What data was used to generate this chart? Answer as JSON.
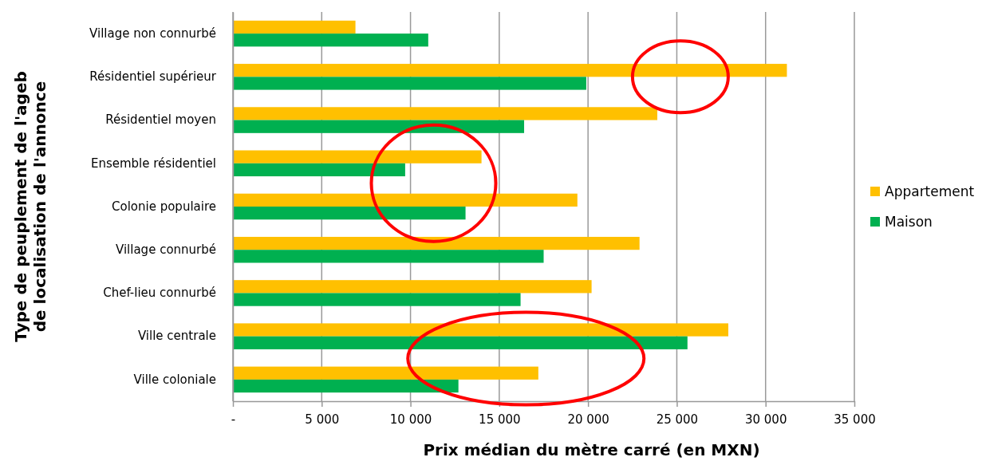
{
  "chart_data": {
    "type": "bar",
    "orientation": "horizontal",
    "xlabel": "Prix médian du mètre carré (en MXN)",
    "ylabel": "Type de peuplement de l'ageb de localisation de l'annonce",
    "categories": [
      "Village non connurbé",
      "Résidentiel supérieur",
      "Résidentiel moyen",
      "Ensemble résidentiel",
      "Colonie populaire",
      "Village connurbé",
      "Chef-lieu connurbé",
      "Ville centrale",
      "Ville coloniale"
    ],
    "series": [
      {
        "name": "Appartement",
        "color": "#ffc000",
        "values": [
          6900,
          31200,
          23900,
          14000,
          19400,
          22900,
          20200,
          27900,
          17200
        ]
      },
      {
        "name": "Maison",
        "color": "#00b050",
        "values": [
          11000,
          19900,
          16400,
          9700,
          13100,
          17500,
          16200,
          25600,
          12700
        ]
      }
    ],
    "xlim": [
      0,
      35000
    ],
    "xticks": [
      {
        "value": 0,
        "label": "-"
      },
      {
        "value": 5000,
        "label": "5 000"
      },
      {
        "value": 10000,
        "label": "10 000"
      },
      {
        "value": 15000,
        "label": "15 000"
      },
      {
        "value": 20000,
        "label": "20 000"
      },
      {
        "value": 25000,
        "label": "25 000"
      },
      {
        "value": 30000,
        "label": "30 000"
      },
      {
        "value": 35000,
        "label": "35 000"
      }
    ],
    "grid": "x",
    "legend": "right"
  }
}
